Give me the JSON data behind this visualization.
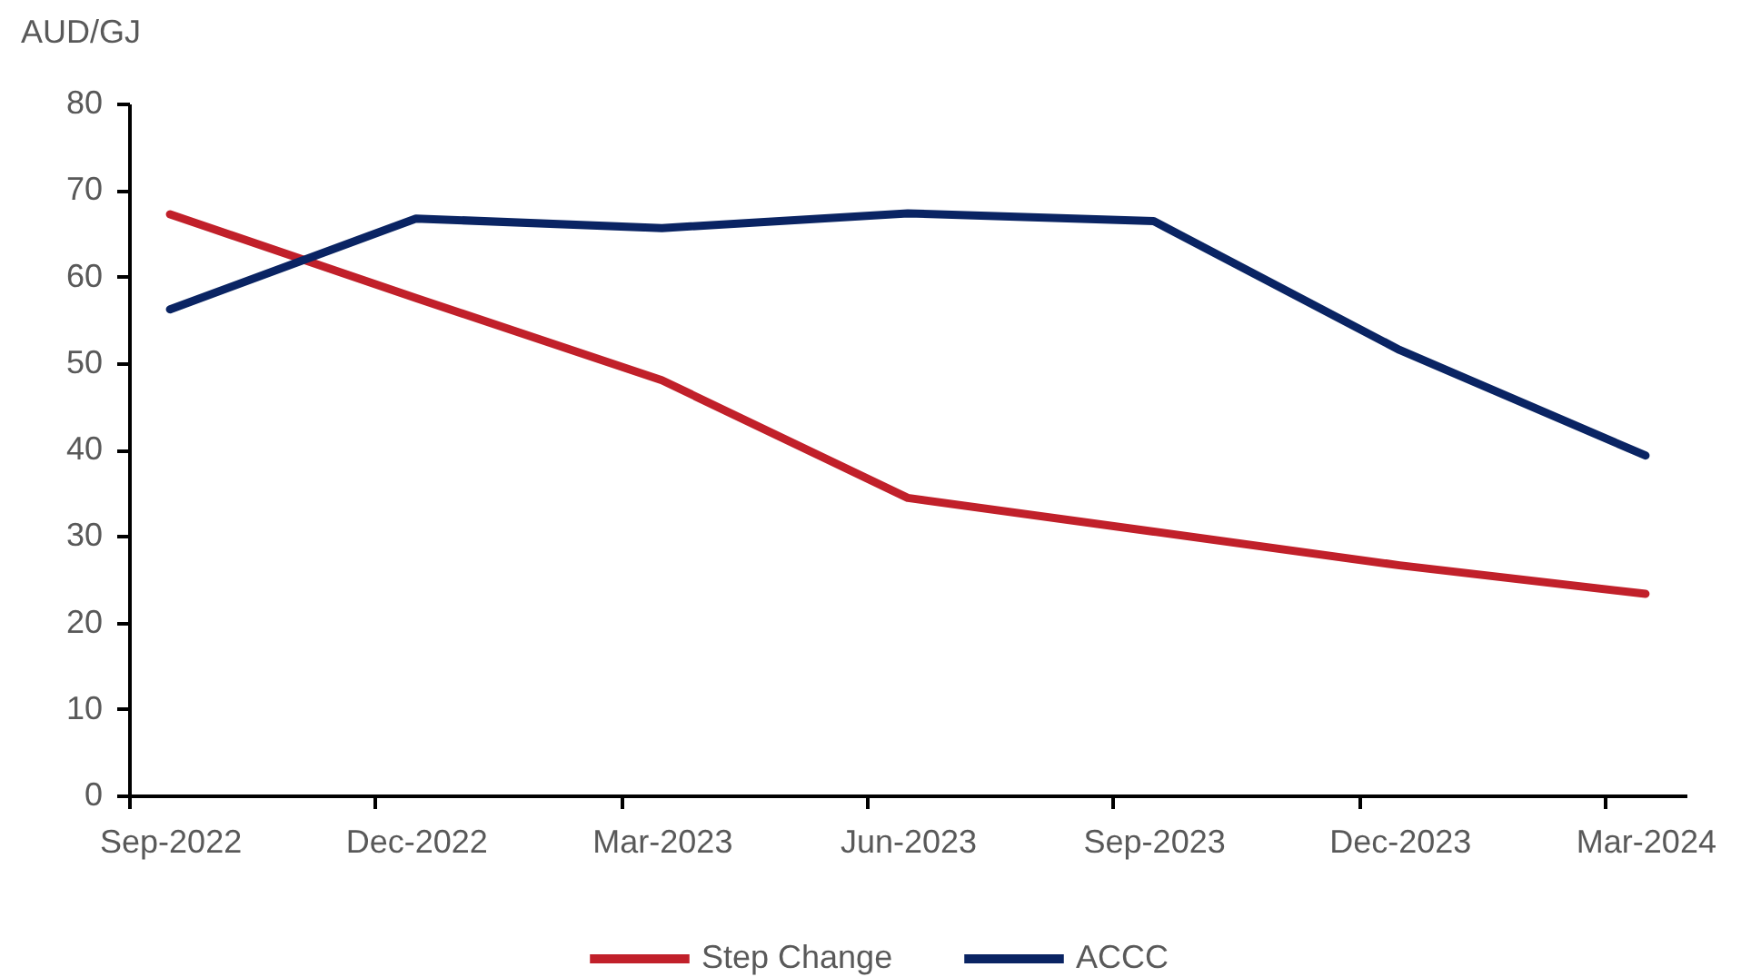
{
  "chart_data": {
    "type": "line",
    "ylabel": "AUD/GJ",
    "categories": [
      "Sep-2022",
      "Dec-2022",
      "Mar-2023",
      "Jun-2023",
      "Sep-2023",
      "Dec-2023",
      "Mar-2024"
    ],
    "series": [
      {
        "name": "Step Change",
        "color": "#c1202a",
        "values": [
          67.2,
          57.5,
          48.0,
          34.4,
          30.5,
          26.6,
          23.3
        ]
      },
      {
        "name": "ACCC",
        "color": "#0a2463",
        "values": [
          56.2,
          66.7,
          65.6,
          67.3,
          66.4,
          51.5,
          39.3
        ]
      }
    ],
    "ylim": [
      0,
      80
    ],
    "yticks": [
      0,
      10,
      20,
      30,
      40,
      50,
      60,
      70,
      80
    ],
    "grid": false,
    "legend": "bottom",
    "marker": "none",
    "line_style": "solid"
  }
}
